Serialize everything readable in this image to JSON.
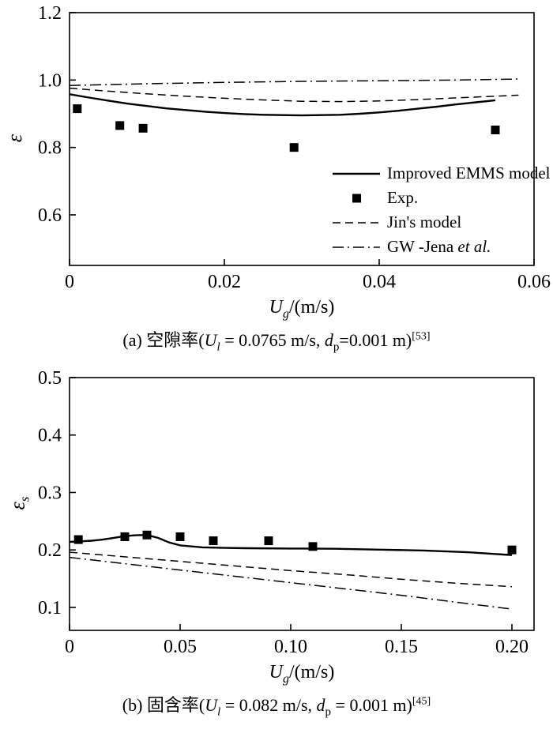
{
  "page": {
    "background": "#ffffff",
    "line_color": "#000000"
  },
  "legend": {
    "items": [
      {
        "label": "Improved EMMS model",
        "style": "solid"
      },
      {
        "label": "Exp.",
        "style": "marker-square"
      },
      {
        "label": "Jin's model",
        "style": "dashed"
      },
      {
        "label_pre": "GW -Jena ",
        "label_it": "et al.",
        "style": "dashdot"
      }
    ]
  },
  "chart_data": [
    {
      "id": "a",
      "type": "line",
      "xlabel": {
        "sym": "U",
        "sub": "g",
        "rest": "/(m/s)"
      },
      "ylabel": {
        "sym": "ε",
        "sub": ""
      },
      "xlim": [
        0,
        0.06
      ],
      "ylim": [
        0.45,
        1.2
      ],
      "xticks": [
        0,
        0.02,
        0.04,
        0.06
      ],
      "xtick_labels": [
        "0",
        "0.02",
        "0.04",
        "0.06"
      ],
      "yticks": [
        0.6,
        0.8,
        1.0,
        1.2
      ],
      "ytick_labels": [
        "0.6",
        "0.8",
        "1.0",
        "1.2"
      ],
      "grid": false,
      "legend_position": "inside-right-middle",
      "series": [
        {
          "name": "Improved EMMS model",
          "style": "solid",
          "x": [
            0,
            0.0025,
            0.005,
            0.0075,
            0.01,
            0.0125,
            0.015,
            0.0175,
            0.02,
            0.0225,
            0.025,
            0.0275,
            0.03,
            0.0325,
            0.035,
            0.0375,
            0.04,
            0.0425,
            0.045,
            0.0475,
            0.05,
            0.0525,
            0.055
          ],
          "y": [
            0.958,
            0.948,
            0.939,
            0.93,
            0.923,
            0.916,
            0.911,
            0.906,
            0.902,
            0.899,
            0.897,
            0.896,
            0.895,
            0.896,
            0.897,
            0.9,
            0.904,
            0.909,
            0.915,
            0.921,
            0.928,
            0.934,
            0.94
          ]
        },
        {
          "name": "Exp.",
          "style": "marker-square",
          "x": [
            0.001,
            0.0065,
            0.0095,
            0.029,
            0.055
          ],
          "y": [
            0.915,
            0.865,
            0.857,
            0.8,
            0.852
          ]
        },
        {
          "name": "Jin's model",
          "style": "dashed",
          "x": [
            0,
            0.005,
            0.01,
            0.015,
            0.02,
            0.025,
            0.03,
            0.035,
            0.04,
            0.045,
            0.05,
            0.055,
            0.058
          ],
          "y": [
            0.976,
            0.967,
            0.959,
            0.952,
            0.946,
            0.941,
            0.937,
            0.936,
            0.938,
            0.942,
            0.947,
            0.952,
            0.955
          ]
        },
        {
          "name": "GW -Jena et al.",
          "style": "dashdot",
          "x": [
            0,
            0.01,
            0.02,
            0.03,
            0.04,
            0.05,
            0.058
          ],
          "y": [
            0.984,
            0.989,
            0.993,
            0.996,
            0.998,
            1.0,
            1.003
          ]
        }
      ],
      "caption": {
        "p1": "(a) 空隙率(",
        "u": "U",
        "usub": "l",
        "p2": " = 0.0765 m/s, ",
        "d": "d",
        "dsub": "p",
        "p3": "=0.001 m)",
        "ref": "[53]"
      }
    },
    {
      "id": "b",
      "type": "line",
      "xlabel": {
        "sym": "U",
        "sub": "g",
        "rest": "/(m/s)"
      },
      "ylabel": {
        "sym": "ε",
        "sub": "s"
      },
      "xlim": [
        0,
        0.21
      ],
      "ylim": [
        0.06,
        0.5
      ],
      "xticks": [
        0,
        0.05,
        0.1,
        0.15,
        0.2
      ],
      "xtick_labels": [
        "0",
        "0.05",
        "0.10",
        "0.15",
        "0.20"
      ],
      "yticks": [
        0.1,
        0.2,
        0.3,
        0.4,
        0.5
      ],
      "ytick_labels": [
        "0.1",
        "0.2",
        "0.3",
        "0.4",
        "0.5"
      ],
      "grid": false,
      "legend_position": "none",
      "series": [
        {
          "name": "Improved EMMS model",
          "style": "solid",
          "x": [
            0,
            0.005,
            0.01,
            0.015,
            0.02,
            0.025,
            0.03,
            0.035,
            0.04,
            0.045,
            0.05,
            0.06,
            0.07,
            0.08,
            0.1,
            0.12,
            0.14,
            0.16,
            0.18,
            0.2
          ],
          "y": [
            0.214,
            0.215,
            0.216,
            0.218,
            0.221,
            0.224,
            0.2255,
            0.226,
            0.221,
            0.213,
            0.208,
            0.2045,
            0.2035,
            0.203,
            0.2025,
            0.202,
            0.2005,
            0.199,
            0.196,
            0.191
          ]
        },
        {
          "name": "Exp.",
          "style": "marker-square",
          "x": [
            0.004,
            0.025,
            0.035,
            0.05,
            0.065,
            0.09,
            0.11,
            0.2
          ],
          "y": [
            0.218,
            0.223,
            0.226,
            0.223,
            0.216,
            0.216,
            0.206,
            0.2
          ]
        },
        {
          "name": "Jin's model",
          "style": "dashed",
          "x": [
            0,
            0.025,
            0.05,
            0.075,
            0.1,
            0.125,
            0.15,
            0.175,
            0.2
          ],
          "y": [
            0.196,
            0.188,
            0.18,
            0.172,
            0.164,
            0.157,
            0.149,
            0.142,
            0.136
          ]
        },
        {
          "name": "GW -Jena et al.",
          "style": "dashdot",
          "x": [
            0,
            0.025,
            0.05,
            0.075,
            0.1,
            0.125,
            0.15,
            0.175,
            0.2
          ],
          "y": [
            0.187,
            0.176,
            0.165,
            0.154,
            0.143,
            0.132,
            0.121,
            0.109,
            0.097
          ]
        }
      ],
      "caption": {
        "p1": "(b) 固含率(",
        "u": "U",
        "usub": "l",
        "p2": " = 0.082 m/s, ",
        "d": "d",
        "dsub": "p",
        "p3": " = 0.001 m)",
        "ref": "[45]"
      }
    }
  ]
}
